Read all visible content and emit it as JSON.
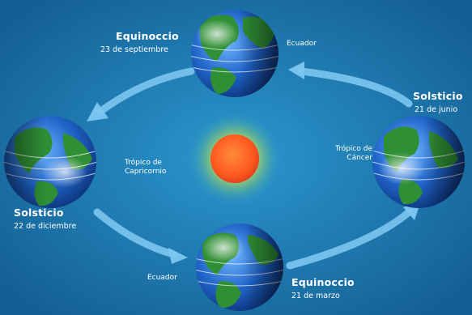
{
  "colors": {
    "background": "#1b7fb4",
    "arrow": "#7cc7f0",
    "sun": "#ff5a1f",
    "sun_glow": "#ffe04a",
    "ocean": "#1f64c8",
    "land": "#2f8f34"
  },
  "labels": {
    "equinox_top": {
      "title": "Equinoccio",
      "date": "23 de septiembre"
    },
    "equinox_bottom": {
      "title": "Equinoccio",
      "date": "21 de marzo"
    },
    "solstice_right": {
      "title": "Solsticio",
      "date": "21 de junio"
    },
    "solstice_left": {
      "title": "Solsticio",
      "date": "22 de diciembre"
    },
    "ecuador_top": "Ecuador",
    "ecuador_bottom": "Ecuador",
    "tropico_capricornio": [
      "Trópico de",
      "Capricornio"
    ],
    "tropico_cancer": [
      "Trópico de",
      "Cáncer"
    ]
  },
  "icons": {
    "sun": "sun-icon",
    "globe": "earth-globe-icon",
    "arrow": "orbit-arrow-icon"
  }
}
